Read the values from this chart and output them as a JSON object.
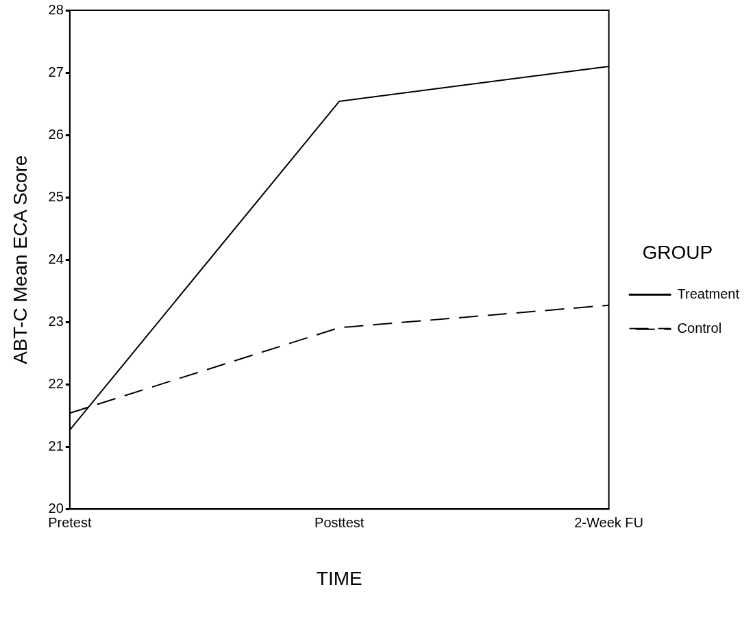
{
  "chart_data": {
    "type": "line",
    "xlabel": "TIME",
    "ylabel": "ABT-C Mean ECA Score",
    "legend_title": "GROUP",
    "categories": [
      "Pretest",
      "Posttest",
      "2-Week FU"
    ],
    "series": [
      {
        "name": "Treatment",
        "color": "#000000",
        "line_style": "solid",
        "values": [
          21.27,
          26.54,
          27.1
        ]
      },
      {
        "name": "Control",
        "color": "#000000",
        "line_style": "dashed",
        "values": [
          21.54,
          22.91,
          23.27
        ]
      }
    ],
    "ylim": [
      20,
      28
    ],
    "yticks": [
      20,
      21,
      22,
      23,
      24,
      25,
      26,
      27,
      28
    ],
    "grid": false,
    "legend": "right",
    "marker": "none"
  }
}
